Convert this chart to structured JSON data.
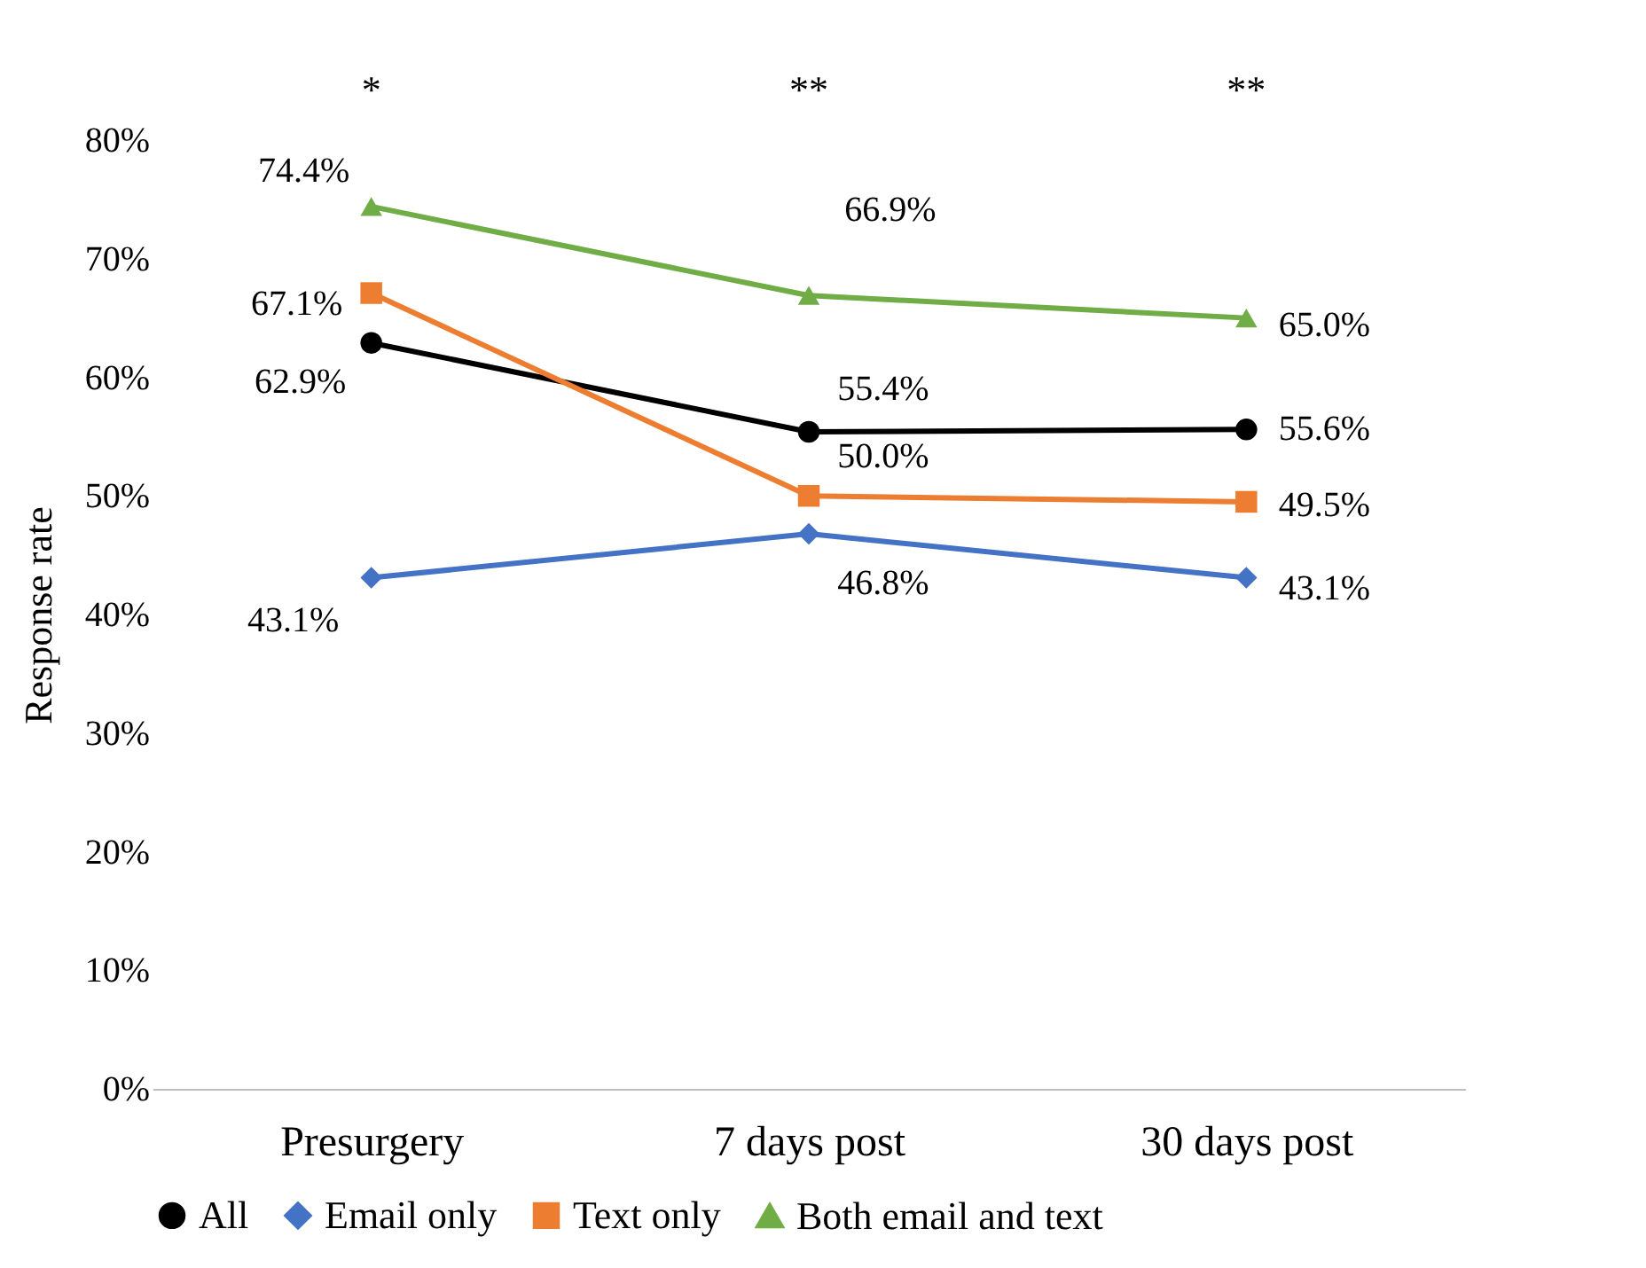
{
  "chart_data": {
    "type": "line",
    "ylabel": "Response rate",
    "categories": [
      "Presurgery",
      "7 days post",
      "30 days post"
    ],
    "series": [
      {
        "name": "All",
        "color": "#000000",
        "marker": "circle",
        "values": [
          62.9,
          55.4,
          55.6
        ],
        "value_labels": [
          "62.9%",
          "55.4%",
          "55.6%"
        ]
      },
      {
        "name": "Email only",
        "color": "#4472c4",
        "marker": "diamond",
        "values": [
          43.1,
          46.8,
          43.1
        ],
        "value_labels": [
          "43.1%",
          "46.8%",
          "43.1%"
        ]
      },
      {
        "name": "Text only",
        "color": "#ed7d31",
        "marker": "square",
        "values": [
          67.1,
          50.0,
          49.5
        ],
        "value_labels": [
          "67.1%",
          "50.0%",
          "49.5%"
        ]
      },
      {
        "name": "Both email and text",
        "color": "#70ad47",
        "marker": "triangle",
        "values": [
          74.4,
          66.9,
          65.0
        ],
        "value_labels": [
          "74.4%",
          "66.9%",
          "65.0%"
        ]
      }
    ],
    "ylim": [
      0,
      80
    ],
    "yticks": [
      {
        "value": 0,
        "label": "0%"
      },
      {
        "value": 10,
        "label": "10%"
      },
      {
        "value": 20,
        "label": "20%"
      },
      {
        "value": 30,
        "label": "30%"
      },
      {
        "value": 40,
        "label": "40%"
      },
      {
        "value": 50,
        "label": "50%"
      },
      {
        "value": 60,
        "label": "60%"
      },
      {
        "value": 70,
        "label": "70%"
      },
      {
        "value": 80,
        "label": "80%"
      }
    ],
    "annotations": [
      "*",
      "**",
      "**"
    ],
    "grid": false,
    "legend": "bottom",
    "line_style": "solid"
  }
}
